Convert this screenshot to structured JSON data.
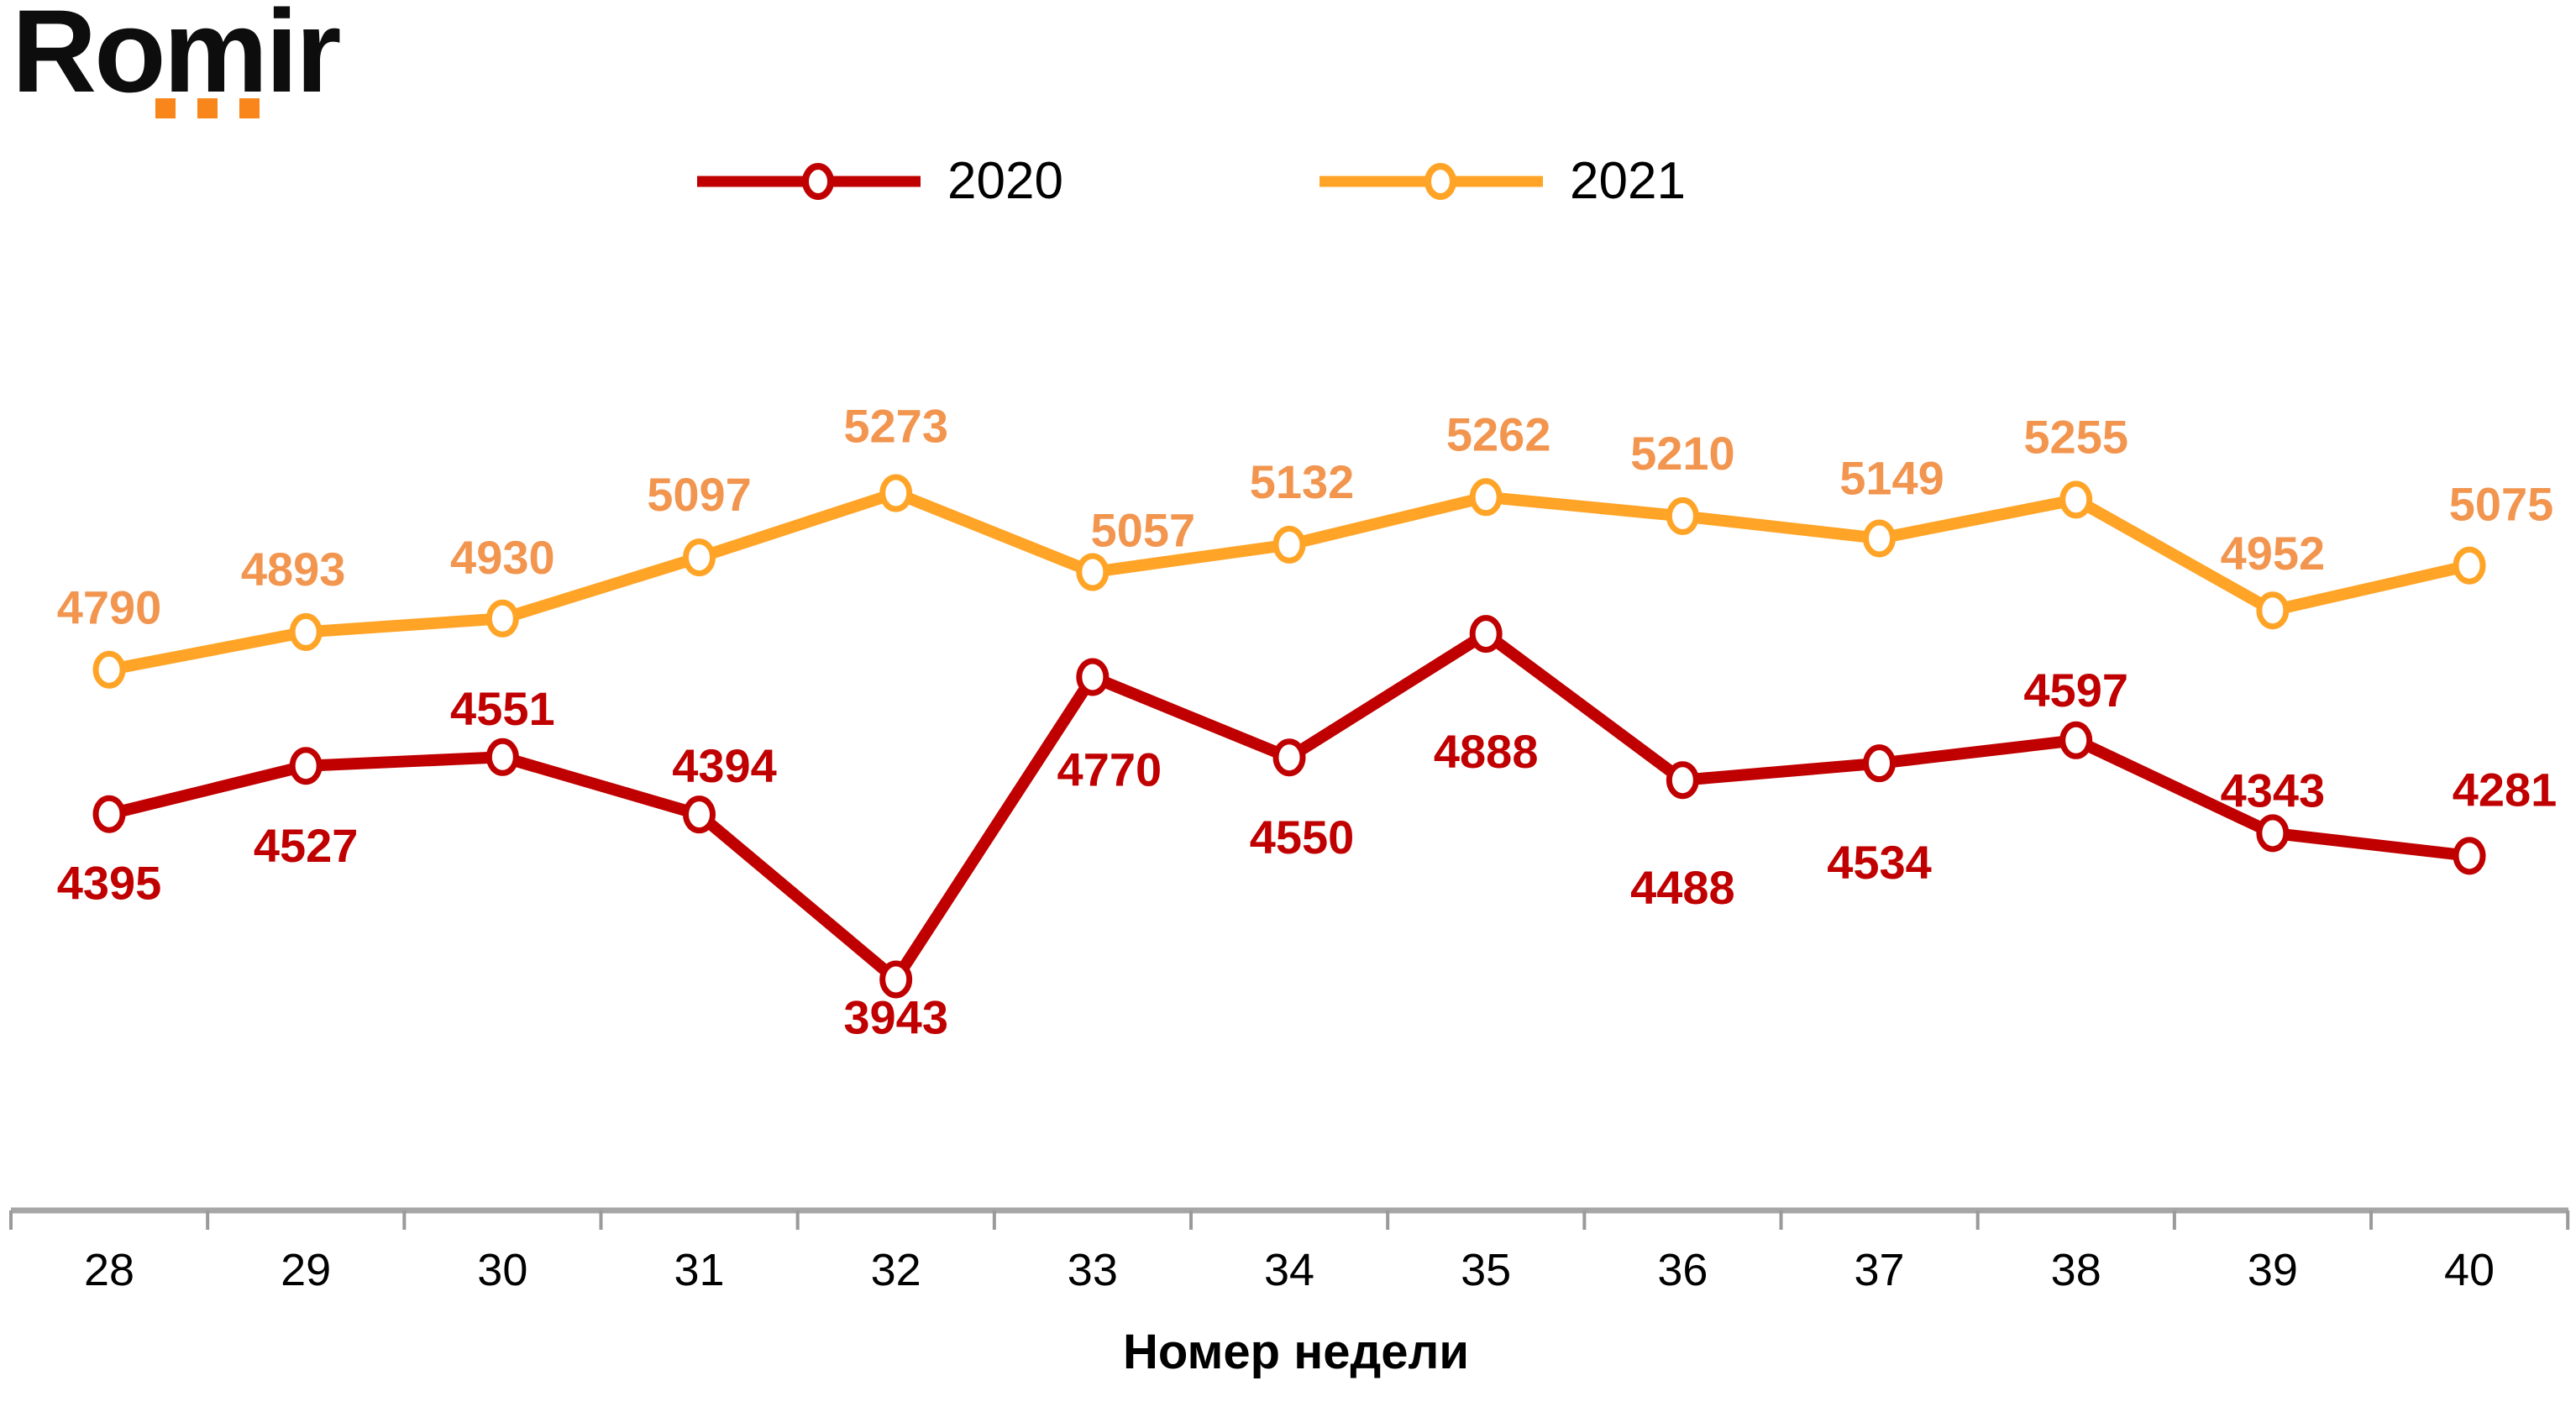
{
  "logo": {
    "text": "Romir",
    "dot_color": "#F8861B"
  },
  "legend": {
    "items": [
      {
        "label": "2020",
        "color": "#C00000"
      },
      {
        "label": "2021",
        "color": "#FFA426"
      }
    ]
  },
  "chart_data": {
    "type": "line",
    "x": [
      28,
      29,
      30,
      31,
      32,
      33,
      34,
      35,
      36,
      37,
      38,
      39,
      40
    ],
    "xlabel": "Номер недели",
    "ylabel": "",
    "title": "",
    "ylim": [
      3800,
      5450
    ],
    "grid": false,
    "legend_position": "top-center",
    "marker": "open-circle",
    "series": [
      {
        "name": "2020",
        "color": "#C00000",
        "label_color": "#C00000",
        "values": [
          4395,
          4527,
          4551,
          4394,
          3943,
          4770,
          4550,
          4888,
          4488,
          4534,
          4597,
          4343,
          4281
        ],
        "label_dx": [
          0,
          0,
          0,
          30,
          0,
          20,
          15,
          0,
          0,
          0,
          0,
          0,
          42
        ],
        "label_dy": [
          82,
          95,
          -58,
          -58,
          45,
          110,
          95,
          140,
          128,
          118,
          -60,
          -51,
          -79
        ]
      },
      {
        "name": "2021",
        "color": "#FFA426",
        "label_color": "#F2954F",
        "values": [
          4790,
          4893,
          4930,
          5097,
          5273,
          5057,
          5132,
          5262,
          5210,
          5149,
          5255,
          4952,
          5075
        ],
        "label_dx": [
          0,
          -15,
          0,
          0,
          0,
          60,
          15,
          15,
          0,
          15,
          0,
          0,
          38
        ],
        "label_dy": [
          -74,
          -75,
          -73,
          -75,
          -80,
          -50,
          -75,
          -75,
          -75,
          -72,
          -75,
          -68,
          -73
        ]
      }
    ]
  },
  "axis": {
    "line_color": "#A6A6A6",
    "tick_color": "#9A9A9A",
    "tick_label_color": "#000000"
  }
}
